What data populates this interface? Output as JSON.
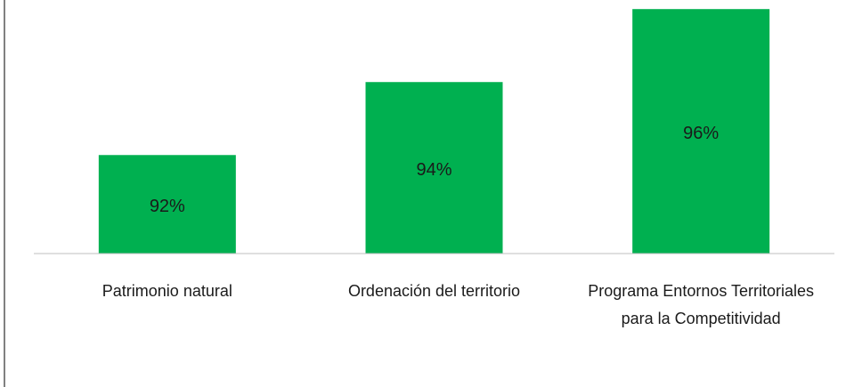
{
  "chart_data": {
    "type": "bar",
    "categories": [
      "Patrimonio natural",
      "Ordenación del territorio",
      "Programa Entornos Territoriales para la Competitividad"
    ],
    "values": [
      92,
      94,
      96
    ],
    "value_labels": [
      "92%",
      "94%",
      "96%"
    ],
    "color": "#00b050",
    "ylim": [
      89.3,
      96.2
    ]
  }
}
